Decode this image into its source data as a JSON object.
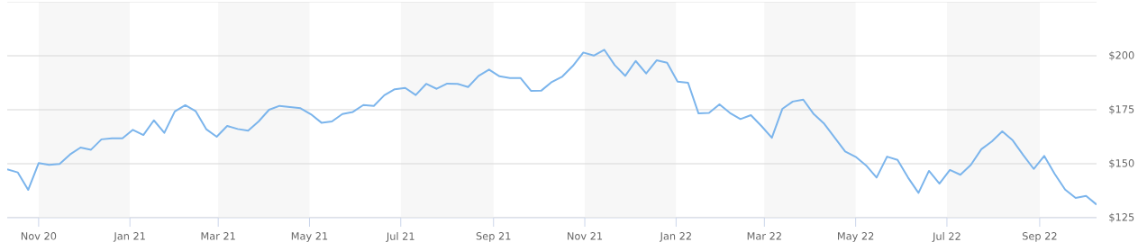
{
  "chart_data": {
    "type": "line",
    "color": "#7cb5ec",
    "x": [
      "2020-10-11",
      "2020-10-18",
      "2020-10-25",
      "2020-11-01",
      "2020-11-08",
      "2020-11-15",
      "2020-11-22",
      "2020-11-29",
      "2020-12-06",
      "2020-12-13",
      "2020-12-20",
      "2020-12-27",
      "2021-01-03",
      "2021-01-10",
      "2021-01-17",
      "2021-01-24",
      "2021-01-31",
      "2021-02-07",
      "2021-02-14",
      "2021-02-21",
      "2021-02-28",
      "2021-03-07",
      "2021-03-14",
      "2021-03-21",
      "2021-03-28",
      "2021-04-04",
      "2021-04-11",
      "2021-04-18",
      "2021-04-25",
      "2021-05-02",
      "2021-05-09",
      "2021-05-16",
      "2021-05-23",
      "2021-05-30",
      "2021-06-06",
      "2021-06-13",
      "2021-06-20",
      "2021-06-27",
      "2021-07-04",
      "2021-07-11",
      "2021-07-18",
      "2021-07-25",
      "2021-08-01",
      "2021-08-08",
      "2021-08-15",
      "2021-08-22",
      "2021-08-29",
      "2021-09-05",
      "2021-09-12",
      "2021-09-19",
      "2021-09-26",
      "2021-10-03",
      "2021-10-10",
      "2021-10-17",
      "2021-10-24",
      "2021-10-31",
      "2021-11-07",
      "2021-11-14",
      "2021-11-21",
      "2021-11-28",
      "2021-12-05",
      "2021-12-12",
      "2021-12-19",
      "2021-12-26",
      "2022-01-02",
      "2022-01-09",
      "2022-01-16",
      "2022-01-23",
      "2022-01-30",
      "2022-02-06",
      "2022-02-13",
      "2022-02-20",
      "2022-02-27",
      "2022-03-06",
      "2022-03-13",
      "2022-03-20",
      "2022-03-27",
      "2022-04-03",
      "2022-04-10",
      "2022-04-17",
      "2022-04-24",
      "2022-05-01",
      "2022-05-08",
      "2022-05-15",
      "2022-05-22",
      "2022-05-29",
      "2022-06-05",
      "2022-06-12",
      "2022-06-19",
      "2022-06-26",
      "2022-07-03",
      "2022-07-10",
      "2022-07-17",
      "2022-07-24",
      "2022-07-31",
      "2022-08-07",
      "2022-08-14",
      "2022-08-21",
      "2022-08-28",
      "2022-09-04",
      "2022-09-11",
      "2022-09-18",
      "2022-09-25",
      "2022-10-02",
      "2022-10-09"
    ],
    "values": [
      147.4,
      146.0,
      137.9,
      150.3,
      149.5,
      149.9,
      154.3,
      157.5,
      156.5,
      161.3,
      161.8,
      161.8,
      165.7,
      163.3,
      170.1,
      164.3,
      174.2,
      177.1,
      174.3,
      166.0,
      162.5,
      167.5,
      166.1,
      165.3,
      169.6,
      175.0,
      176.8,
      176.3,
      175.7,
      172.9,
      169.0,
      169.6,
      173.0,
      174.0,
      177.2,
      176.8,
      181.7,
      184.5,
      185.1,
      181.8,
      187.0,
      184.7,
      187.1,
      187.0,
      185.5,
      190.7,
      193.6,
      190.5,
      189.7,
      189.7,
      183.8,
      183.9,
      187.9,
      190.4,
      195.3,
      201.5,
      200.1,
      202.8,
      195.7,
      190.7,
      197.6,
      191.8,
      197.9,
      196.8,
      188.0,
      187.5,
      173.3,
      173.5,
      177.5,
      173.5,
      170.7,
      172.5,
      167.5,
      162.0,
      175.4,
      178.8,
      179.7,
      173.0,
      168.5,
      162.1,
      155.7,
      153.2,
      149.2,
      143.6,
      153.3,
      151.8,
      143.6,
      136.5,
      146.7,
      140.8,
      147.1,
      144.9,
      149.5,
      156.7,
      160.3,
      165.0,
      160.8,
      154.0,
      147.6,
      153.6,
      145.3,
      138.0,
      134.2,
      135.1,
      131.1
    ],
    "xlim": [
      "2020-10-11",
      "2022-10-09"
    ],
    "xticks": [
      {
        "value": "2020-11-01",
        "label": "Nov 20"
      },
      {
        "value": "2021-01-01",
        "label": "Jan 21"
      },
      {
        "value": "2021-03-01",
        "label": "Mar 21"
      },
      {
        "value": "2021-05-01",
        "label": "May 21"
      },
      {
        "value": "2021-07-01",
        "label": "Jul 21"
      },
      {
        "value": "2021-09-01",
        "label": "Sep 21"
      },
      {
        "value": "2021-11-01",
        "label": "Nov 21"
      },
      {
        "value": "2022-01-01",
        "label": "Jan 22"
      },
      {
        "value": "2022-03-01",
        "label": "Mar 22"
      },
      {
        "value": "2022-05-01",
        "label": "May 22"
      },
      {
        "value": "2022-07-01",
        "label": "Jul 22"
      },
      {
        "value": "2022-09-01",
        "label": "Sep 22"
      }
    ],
    "ylim": [
      125,
      225
    ],
    "yticks": [
      {
        "value": 125,
        "label": "$125"
      },
      {
        "value": 150,
        "label": "$150"
      },
      {
        "value": 175,
        "label": "$175"
      },
      {
        "value": 200,
        "label": "$200"
      },
      {
        "value": 225,
        "label": null
      }
    ],
    "bands": [
      {
        "axis": "x",
        "from": "2020-11-01",
        "to": "2021-01-01",
        "color": "#f7f7f7"
      },
      {
        "axis": "x",
        "from": "2021-03-01",
        "to": "2021-05-01",
        "color": "#f7f7f7"
      },
      {
        "axis": "x",
        "from": "2021-07-01",
        "to": "2021-09-01",
        "color": "#f7f7f7"
      },
      {
        "axis": "x",
        "from": "2021-11-01",
        "to": "2022-01-01",
        "color": "#f7f7f7"
      },
      {
        "axis": "x",
        "from": "2022-03-01",
        "to": "2022-05-01",
        "color": "#f7f7f7"
      },
      {
        "axis": "x",
        "from": "2022-07-01",
        "to": "2022-09-01",
        "color": "#f7f7f7"
      }
    ],
    "grid": "y"
  }
}
